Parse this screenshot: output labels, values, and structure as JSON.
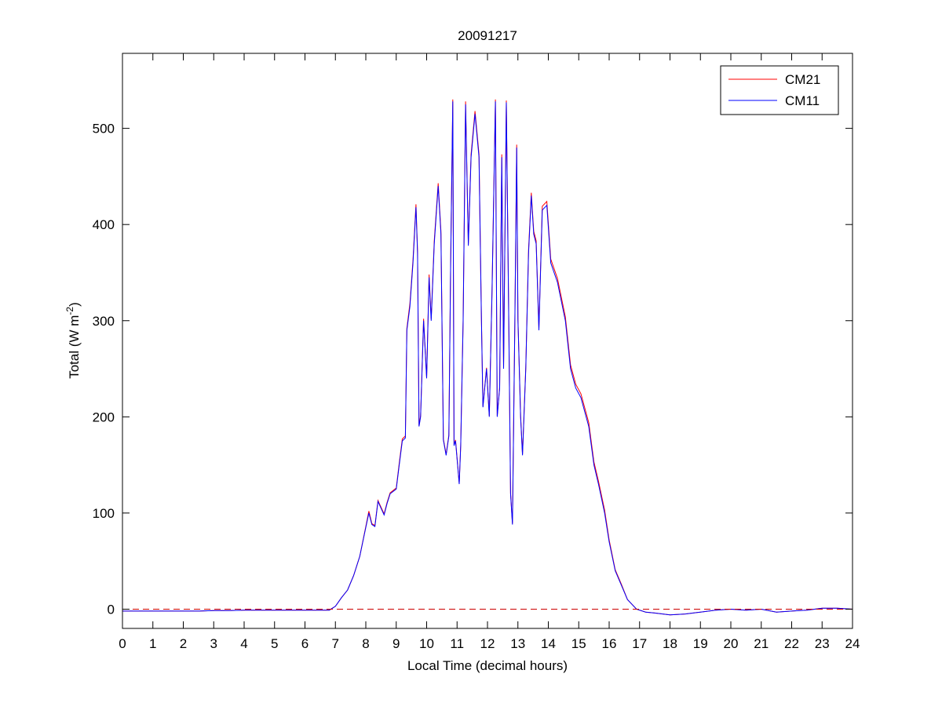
{
  "chart_data": {
    "type": "line",
    "title": "20091217",
    "xlabel": "Local Time (decimal hours)",
    "ylabel": "Total (W m^-2)",
    "ylabel_parts": {
      "main": "Total (W m",
      "sup": "-2",
      "end": ")"
    },
    "xlim": [
      0,
      24
    ],
    "ylim": [
      -20,
      578
    ],
    "xticks": [
      "0",
      "1",
      "2",
      "3",
      "4",
      "5",
      "6",
      "7",
      "8",
      "9",
      "10",
      "11",
      "12",
      "13",
      "14",
      "15",
      "16",
      "17",
      "18",
      "19",
      "20",
      "21",
      "22",
      "23",
      "24"
    ],
    "yticks": [
      "0",
      "100",
      "200",
      "300",
      "400",
      "500"
    ],
    "grid": false,
    "legend_position": "top-right",
    "reference_line": {
      "y": 0,
      "style": "dashed",
      "color": "#cc0000"
    },
    "x": [
      0,
      0.5,
      1,
      1.5,
      2,
      2.5,
      3,
      3.5,
      4,
      4.5,
      5,
      5.5,
      6,
      6.5,
      6.8,
      7.0,
      7.2,
      7.4,
      7.6,
      7.8,
      8.0,
      8.1,
      8.2,
      8.3,
      8.4,
      8.5,
      8.6,
      8.7,
      8.8,
      9.0,
      9.1,
      9.2,
      9.3,
      9.35,
      9.45,
      9.55,
      9.65,
      9.7,
      9.75,
      9.8,
      9.9,
      10.0,
      10.08,
      10.15,
      10.25,
      10.38,
      10.47,
      10.55,
      10.64,
      10.73,
      10.79,
      10.86,
      10.9,
      10.95,
      11.07,
      11.12,
      11.2,
      11.28,
      11.37,
      11.46,
      11.59,
      11.72,
      11.8,
      11.85,
      11.97,
      12.06,
      12.15,
      12.26,
      12.32,
      12.4,
      12.47,
      12.53,
      12.62,
      12.7,
      12.76,
      12.82,
      12.9,
      12.96,
      13.0,
      13.09,
      13.15,
      13.26,
      13.35,
      13.44,
      13.52,
      13.6,
      13.69,
      13.8,
      13.95,
      14.08,
      14.3,
      14.56,
      14.73,
      14.9,
      15.07,
      15.33,
      15.5,
      15.65,
      15.85,
      16.0,
      16.2,
      16.4,
      16.6,
      16.9,
      17.2,
      17.5,
      18,
      18.5,
      19,
      19.5,
      20,
      20.5,
      21,
      21.5,
      22,
      22.5,
      23,
      23.5,
      24
    ],
    "series": [
      {
        "name": "CM21",
        "color": "#ff0000",
        "values": [
          -2,
          -2,
          -2,
          -2,
          -2,
          -2,
          -1.5,
          -1.5,
          -1,
          -1,
          -1,
          -1,
          -1,
          -1,
          -1,
          3,
          12,
          20,
          35,
          55,
          86,
          102,
          89,
          87,
          113,
          106,
          99,
          111,
          121,
          126,
          152,
          177,
          180,
          292,
          318,
          363,
          421,
          372,
          191,
          201,
          302,
          241,
          348,
          302,
          383,
          443,
          393,
          177,
          161,
          181,
          362,
          530,
          171,
          176,
          131,
          171,
          302,
          528,
          380,
          473,
          518,
          473,
          302,
          211,
          251,
          201,
          332,
          530,
          201,
          231,
          473,
          251,
          529,
          302,
          121,
          89,
          302,
          483,
          302,
          201,
          161,
          252,
          373,
          433,
          393,
          383,
          292,
          419,
          424,
          364,
          344,
          304,
          254,
          234,
          224,
          194,
          153,
          133,
          103,
          72,
          41,
          26,
          10,
          0,
          -3,
          -4,
          -6,
          -5,
          -3,
          -1,
          0,
          -1,
          0,
          -3,
          -2,
          -1,
          1,
          1,
          0
        ]
      },
      {
        "name": "CM11",
        "color": "#0000ff",
        "values": [
          -2,
          -2,
          -2,
          -2,
          -2,
          -2,
          -1.5,
          -1.5,
          -1,
          -1,
          -1,
          -1,
          -1,
          -1,
          -1,
          3,
          12,
          20,
          35,
          55,
          85,
          100,
          88,
          86,
          112,
          105,
          98,
          110,
          120,
          125,
          150,
          175,
          178,
          290,
          315,
          360,
          418,
          370,
          190,
          200,
          300,
          240,
          345,
          300,
          380,
          440,
          390,
          176,
          160,
          180,
          360,
          528,
          170,
          175,
          130,
          170,
          300,
          525,
          378,
          470,
          515,
          470,
          300,
          210,
          250,
          200,
          330,
          528,
          200,
          230,
          470,
          250,
          527,
          300,
          120,
          88,
          300,
          480,
          300,
          200,
          160,
          250,
          370,
          430,
          390,
          380,
          290,
          415,
          420,
          360,
          340,
          300,
          250,
          230,
          220,
          190,
          150,
          130,
          100,
          70,
          40,
          25,
          10,
          0,
          -3,
          -4,
          -6,
          -5,
          -3,
          -1,
          0,
          -1,
          0,
          -3,
          -2,
          -1,
          1,
          1,
          0
        ]
      }
    ]
  }
}
